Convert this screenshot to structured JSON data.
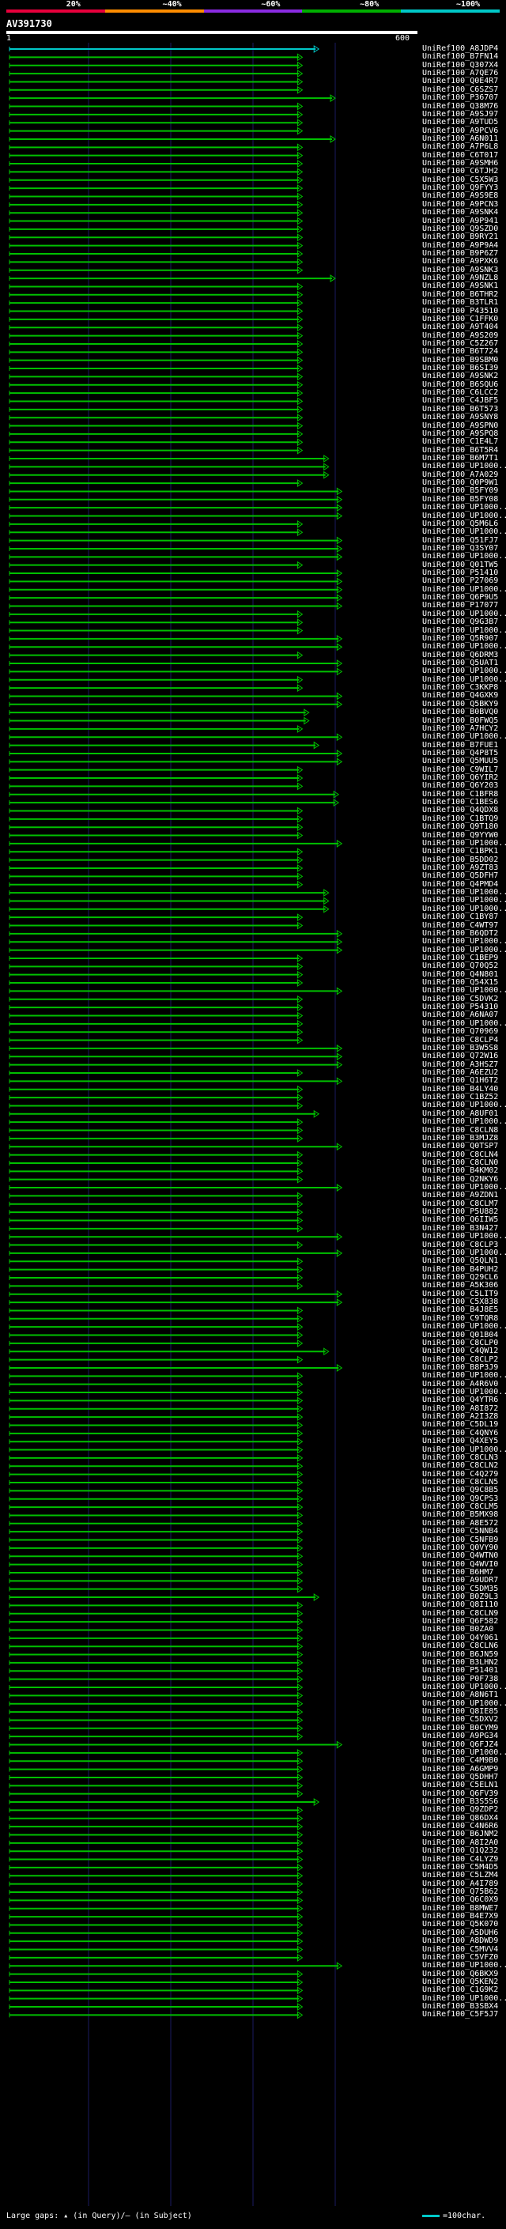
{
  "scale": {
    "labels": [
      "20%",
      "~40%",
      "~60%",
      "~80%",
      "~100%"
    ],
    "colors": [
      "#e8003c",
      "#ff8c00",
      "#8a2be2",
      "#00b000",
      "#00c8c8"
    ]
  },
  "query": {
    "id": "AV391730",
    "start": "1",
    "end": "600"
  },
  "colors": {
    "hit": "#00c000",
    "grid": "#1a1a60",
    "gap": "#ffffff",
    "scale_tick": "#00c8c8"
  },
  "hits": [
    {
      "label": "UniRef100_A8JDP4",
      "end": 0.95,
      "color": "#00c8c8"
    },
    {
      "label": "UniRef100_B7FN14",
      "end": 0.9
    },
    {
      "label": "UniRef100_Q307X4",
      "end": 0.9
    },
    {
      "label": "UniRef100_A7QE76",
      "end": 0.9
    },
    {
      "label": "UniRef100_Q0E4R7",
      "end": 0.9
    },
    {
      "label": "UniRef100_C6SZS7",
      "end": 0.9
    },
    {
      "label": "UniRef100_P36707",
      "end": 1.0
    },
    {
      "label": "UniRef100_Q38M76",
      "end": 0.9
    },
    {
      "label": "UniRef100_A9SJ97",
      "end": 0.9
    },
    {
      "label": "UniRef100_A9TUD5",
      "end": 0.9
    },
    {
      "label": "UniRef100_A9PCV6",
      "end": 0.9
    },
    {
      "label": "UniRef100_A6N011",
      "end": 1.0
    },
    {
      "label": "UniRef100_A7P6L8",
      "end": 0.9
    },
    {
      "label": "UniRef100_C6T017",
      "end": 0.9
    },
    {
      "label": "UniRef100_A9SMH6",
      "end": 0.9
    },
    {
      "label": "UniRef100_C6TJH2",
      "end": 0.9
    },
    {
      "label": "UniRef100_C5X5W3",
      "end": 0.9
    },
    {
      "label": "UniRef100_Q9FYY3",
      "end": 0.9
    },
    {
      "label": "UniRef100_A9S9E8",
      "end": 0.9
    },
    {
      "label": "UniRef100_A9PCN3",
      "end": 0.9
    },
    {
      "label": "UniRef100_A9SNK4",
      "end": 0.9
    },
    {
      "label": "UniRef100_A9P941",
      "end": 0.9
    },
    {
      "label": "UniRef100_Q9SZD0",
      "end": 0.9
    },
    {
      "label": "UniRef100_B9RY21",
      "end": 0.9
    },
    {
      "label": "UniRef100_A9P9A4",
      "end": 0.9
    },
    {
      "label": "UniRef100_B9P6Z7",
      "end": 0.9
    },
    {
      "label": "UniRef100_A9PXK6",
      "end": 0.9
    },
    {
      "label": "UniRef100_A9SNK3",
      "end": 0.9
    },
    {
      "label": "UniRef100_A9NZL8",
      "end": 1.0
    },
    {
      "label": "UniRef100_A9SNK1",
      "end": 0.9
    },
    {
      "label": "UniRef100_B6THR2",
      "end": 0.9
    },
    {
      "label": "UniRef100_B3TLR1",
      "end": 0.9
    },
    {
      "label": "UniRef100_P43510",
      "end": 0.9
    },
    {
      "label": "UniRef100_C1FFK0",
      "end": 0.9
    },
    {
      "label": "UniRef100_A9T404",
      "end": 0.9
    },
    {
      "label": "UniRef100_A9S209",
      "end": 0.9
    },
    {
      "label": "UniRef100_C5Z267",
      "end": 0.9
    },
    {
      "label": "UniRef100_B6T724",
      "end": 0.9
    },
    {
      "label": "UniRef100_B9SBM0",
      "end": 0.9
    },
    {
      "label": "UniRef100_B6SI39",
      "end": 0.9
    },
    {
      "label": "UniRef100_A9SNK2",
      "end": 0.9
    },
    {
      "label": "UniRef100_B6SQU6",
      "end": 0.9
    },
    {
      "label": "UniRef100_C6LCC2",
      "end": 0.9
    },
    {
      "label": "UniRef100_C4JBF5",
      "end": 0.9
    },
    {
      "label": "UniRef100_B6T573",
      "end": 0.9
    },
    {
      "label": "UniRef100_A9SNY8",
      "end": 0.9
    },
    {
      "label": "UniRef100_A9SPN0",
      "end": 0.9
    },
    {
      "label": "UniRef100_A9SPQ8",
      "end": 0.9
    },
    {
      "label": "UniRef100_C1E4L7",
      "end": 0.9
    },
    {
      "label": "UniRef100_B6T5R4",
      "end": 0.9
    },
    {
      "label": "UniRef100_B6M7T1",
      "end": 0.98
    },
    {
      "label": "UniRef100_UP1000...",
      "end": 0.98
    },
    {
      "label": "UniRef100_A7A029",
      "end": 0.98
    },
    {
      "label": "UniRef100_Q0P9W1",
      "end": 0.9
    },
    {
      "label": "UniRef100_B5FY09",
      "end": 1.02
    },
    {
      "label": "UniRef100_B5FY08",
      "end": 1.02
    },
    {
      "label": "UniRef100_UP1000...",
      "end": 1.02
    },
    {
      "label": "UniRef100_UP1000...",
      "end": 1.02
    },
    {
      "label": "UniRef100_Q5M6L6",
      "end": 0.9
    },
    {
      "label": "UniRef100_UP1000...",
      "end": 0.9
    },
    {
      "label": "UniRef100_Q51FJ7",
      "end": 1.02
    },
    {
      "label": "UniRef100_Q3SY07",
      "end": 1.02
    },
    {
      "label": "UniRef100_UP1000...",
      "end": 1.02
    },
    {
      "label": "UniRef100_Q01TW5",
      "end": 0.9
    },
    {
      "label": "UniRef100_P51410",
      "end": 1.02
    },
    {
      "label": "UniRef100_P27069",
      "end": 1.02
    },
    {
      "label": "UniRef100_UP1000...",
      "end": 1.02
    },
    {
      "label": "UniRef100_Q6P9U5",
      "end": 1.02
    },
    {
      "label": "UniRef100_P17077",
      "end": 1.02
    },
    {
      "label": "UniRef100_UP1000...",
      "end": 0.9
    },
    {
      "label": "UniRef100_Q9G3B7",
      "end": 0.9
    },
    {
      "label": "UniRef100_UP1000...",
      "end": 0.9
    },
    {
      "label": "UniRef100_Q5R907",
      "end": 1.02
    },
    {
      "label": "UniRef100_UP1000...",
      "end": 1.02
    },
    {
      "label": "UniRef100_Q6DRM3",
      "end": 0.9
    },
    {
      "label": "UniRef100_Q5UAT1",
      "end": 1.02
    },
    {
      "label": "UniRef100_UP1000...",
      "end": 1.02
    },
    {
      "label": "UniRef100_UP1000...",
      "end": 0.9
    },
    {
      "label": "UniRef100_C3KKP8",
      "end": 0.9
    },
    {
      "label": "UniRef100_Q4GXK9",
      "end": 1.02
    },
    {
      "label": "UniRef100_Q5BKY9",
      "end": 1.02
    },
    {
      "label": "UniRef100_B0BVQ0",
      "end": 0.92
    },
    {
      "label": "UniRef100_B0FWQ5",
      "end": 0.92
    },
    {
      "label": "UniRef100_A7HCY2",
      "end": 0.9
    },
    {
      "label": "UniRef100_UP1000...",
      "end": 1.02
    },
    {
      "label": "UniRef100_B7FUE1",
      "end": 0.95
    },
    {
      "label": "UniRef100_Q4P8T5",
      "end": 1.02
    },
    {
      "label": "UniRef100_Q5MUU5",
      "end": 1.02
    },
    {
      "label": "UniRef100_C9WIL7",
      "end": 0.9
    },
    {
      "label": "UniRef100_Q6YIR2",
      "end": 0.9
    },
    {
      "label": "UniRef100_Q6Y203",
      "end": 0.9
    },
    {
      "label": "UniRef100_C1BFR8",
      "end": 1.01
    },
    {
      "label": "UniRef100_C1BES6",
      "end": 1.01
    },
    {
      "label": "UniRef100_Q4QDX8",
      "end": 0.9
    },
    {
      "label": "UniRef100_C1BTQ9",
      "end": 0.9
    },
    {
      "label": "UniRef100_Q9T180",
      "end": 0.9
    },
    {
      "label": "UniRef100_Q9YYW0",
      "end": 0.9
    },
    {
      "label": "UniRef100_UP1000...",
      "end": 1.02
    },
    {
      "label": "UniRef100_C1BPK1",
      "end": 0.9
    },
    {
      "label": "UniRef100_B5DD02",
      "end": 0.9
    },
    {
      "label": "UniRef100_A9ZT83",
      "end": 0.9
    },
    {
      "label": "UniRef100_Q5DFH7",
      "end": 0.9
    },
    {
      "label": "UniRef100_Q4PMD4",
      "end": 0.9
    },
    {
      "label": "UniRef100_UP1000...",
      "end": 0.98
    },
    {
      "label": "UniRef100_UP1000...",
      "end": 0.98
    },
    {
      "label": "UniRef100_UP1000...",
      "end": 0.98
    },
    {
      "label": "UniRef100_C1BY87",
      "end": 0.9
    },
    {
      "label": "UniRef100_C4WT97",
      "end": 0.9
    },
    {
      "label": "UniRef100_B6QDT2",
      "end": 1.02
    },
    {
      "label": "UniRef100_UP1000...",
      "end": 1.02
    },
    {
      "label": "UniRef100_UP1000...",
      "end": 1.02
    },
    {
      "label": "UniRef100_C1BEP9",
      "end": 0.9
    },
    {
      "label": "UniRef100_Q70Q52",
      "end": 0.9
    },
    {
      "label": "UniRef100_Q4N801",
      "end": 0.9
    },
    {
      "label": "UniRef100_Q54X15",
      "end": 0.9
    },
    {
      "label": "UniRef100_UP1000...",
      "end": 1.02
    },
    {
      "label": "UniRef100_C5DVK2",
      "end": 0.9
    },
    {
      "label": "UniRef100_P54310",
      "end": 0.9
    },
    {
      "label": "UniRef100_A6NA07",
      "end": 0.9
    },
    {
      "label": "UniRef100_UP1000...",
      "end": 0.9
    },
    {
      "label": "UniRef100_Q70969",
      "end": 0.9
    },
    {
      "label": "UniRef100_C8CLP4",
      "end": 0.9
    },
    {
      "label": "UniRef100_B3W5S8",
      "end": 1.02
    },
    {
      "label": "UniRef100_Q72W16",
      "end": 1.02
    },
    {
      "label": "UniRef100_A3HSZ7",
      "end": 1.02
    },
    {
      "label": "UniRef100_A6EZU2",
      "end": 0.9
    },
    {
      "label": "UniRef100_Q1H6T2",
      "end": 1.02
    },
    {
      "label": "UniRef100_B4LY40",
      "end": 0.9
    },
    {
      "label": "UniRef100_C1BZ52",
      "end": 0.9
    },
    {
      "label": "UniRef100_UP1000...",
      "end": 0.9
    },
    {
      "label": "UniRef100_A8UF01",
      "end": 0.95
    },
    {
      "label": "UniRef100_UP1000...",
      "end": 0.9
    },
    {
      "label": "UniRef100_C8CLN8",
      "end": 0.9
    },
    {
      "label": "UniRef100_B3MJZ8",
      "end": 0.9
    },
    {
      "label": "UniRef100_Q0TSP7",
      "end": 1.02
    },
    {
      "label": "UniRef100_C8CLN4",
      "end": 0.9
    },
    {
      "label": "UniRef100_C8CLN0",
      "end": 0.9
    },
    {
      "label": "UniRef100_B4KM02",
      "end": 0.9
    },
    {
      "label": "UniRef100_Q2NKY6",
      "end": 0.9
    },
    {
      "label": "UniRef100_UP1000...",
      "end": 1.02
    },
    {
      "label": "UniRef100_A9ZDN1",
      "end": 0.9
    },
    {
      "label": "UniRef100_C8CLM7",
      "end": 0.9
    },
    {
      "label": "UniRef100_P5U882",
      "end": 0.9
    },
    {
      "label": "UniRef100_Q6IIW5",
      "end": 0.9
    },
    {
      "label": "UniRef100_B3N427",
      "end": 0.9
    },
    {
      "label": "UniRef100_UP1000...",
      "end": 1.02
    },
    {
      "label": "UniRef100_C8CLP3",
      "end": 0.9
    },
    {
      "label": "UniRef100_UP1000...",
      "end": 1.02
    },
    {
      "label": "UniRef100_Q5QLN1",
      "end": 0.9
    },
    {
      "label": "UniRef100_B4PUH2",
      "end": 0.9
    },
    {
      "label": "UniRef100_Q29CL6",
      "end": 0.9
    },
    {
      "label": "UniRef100_A5K306",
      "end": 0.9
    },
    {
      "label": "UniRef100_C5LIT9",
      "end": 1.02
    },
    {
      "label": "UniRef100_C5X838",
      "end": 1.02
    },
    {
      "label": "UniRef100_B4J8E5",
      "end": 0.9
    },
    {
      "label": "UniRef100_C9TQR8",
      "end": 0.9
    },
    {
      "label": "UniRef100_UP1000...",
      "end": 0.9
    },
    {
      "label": "UniRef100_Q01B04",
      "end": 0.9
    },
    {
      "label": "UniRef100_C8CLP0",
      "end": 0.9
    },
    {
      "label": "UniRef100_C4QW12",
      "end": 0.98
    },
    {
      "label": "UniRef100_C8CLP2",
      "end": 0.9
    },
    {
      "label": "UniRef100_B8P3J9",
      "end": 1.02
    },
    {
      "label": "UniRef100_UP1000...",
      "end": 0.9
    },
    {
      "label": "UniRef100_A4R6V0",
      "end": 0.9
    },
    {
      "label": "UniRef100_UP1000...",
      "end": 0.9
    },
    {
      "label": "UniRef100_Q4YTR6",
      "end": 0.9
    },
    {
      "label": "UniRef100_A8I872",
      "end": 0.9
    },
    {
      "label": "UniRef100_A2I3Z8",
      "end": 0.9
    },
    {
      "label": "UniRef100_C5DL19",
      "end": 0.9
    },
    {
      "label": "UniRef100_C4QNY6",
      "end": 0.9
    },
    {
      "label": "UniRef100_Q4XEY5",
      "end": 0.9
    },
    {
      "label": "UniRef100_UP1000...",
      "end": 0.9
    },
    {
      "label": "UniRef100_C8CLN3",
      "end": 0.9
    },
    {
      "label": "UniRef100_C8CLN2",
      "end": 0.9
    },
    {
      "label": "UniRef100_C4Q279",
      "end": 0.9
    },
    {
      "label": "UniRef100_C8CLN5",
      "end": 0.9
    },
    {
      "label": "UniRef100_Q9C8B5",
      "end": 0.9
    },
    {
      "label": "UniRef100_Q9CPS3",
      "end": 0.9
    },
    {
      "label": "UniRef100_C8CLM5",
      "end": 0.9
    },
    {
      "label": "UniRef100_B5MX98",
      "end": 0.9
    },
    {
      "label": "UniRef100_A8E572",
      "end": 0.9
    },
    {
      "label": "UniRef100_C5NNB4",
      "end": 0.9
    },
    {
      "label": "UniRef100_C5NFB9",
      "end": 0.9
    },
    {
      "label": "UniRef100_Q0VY90",
      "end": 0.9
    },
    {
      "label": "UniRef100_Q4WTN0",
      "end": 0.9
    },
    {
      "label": "UniRef100_Q4WVI0",
      "end": 0.9
    },
    {
      "label": "UniRef100_B6HM7",
      "end": 0.9
    },
    {
      "label": "UniRef100_A9UDR7",
      "end": 0.9
    },
    {
      "label": "UniRef100_C5DM35",
      "end": 0.9
    },
    {
      "label": "UniRef100_B0Z9L3",
      "end": 0.95
    },
    {
      "label": "UniRef100_Q8I110",
      "end": 0.9
    },
    {
      "label": "UniRef100_C8CLN9",
      "end": 0.9
    },
    {
      "label": "UniRef100_Q6F582",
      "end": 0.9
    },
    {
      "label": "UniRef100_B0ZA0",
      "end": 0.9
    },
    {
      "label": "UniRef100_Q4Y061",
      "end": 0.9
    },
    {
      "label": "UniRef100_C8CLN6",
      "end": 0.9
    },
    {
      "label": "UniRef100_B6JN59",
      "end": 0.9
    },
    {
      "label": "UniRef100_B3LHN2",
      "end": 0.9
    },
    {
      "label": "UniRef100_P51401",
      "end": 0.9
    },
    {
      "label": "UniRef100_P0F738",
      "end": 0.9
    },
    {
      "label": "UniRef100_UP1000...",
      "end": 0.9
    },
    {
      "label": "UniRef100_A8N6T1",
      "end": 0.9
    },
    {
      "label": "UniRef100_UP1000...",
      "end": 0.9
    },
    {
      "label": "UniRef100_Q8IE85",
      "end": 0.9
    },
    {
      "label": "UniRef100_C5DXV2",
      "end": 0.9
    },
    {
      "label": "UniRef100_B0CYM9",
      "end": 0.9
    },
    {
      "label": "UniRef100_A9PG34",
      "end": 0.9
    },
    {
      "label": "UniRef100_Q6FJZ4",
      "end": 1.02
    },
    {
      "label": "UniRef100_UP1000...",
      "end": 0.9
    },
    {
      "label": "UniRef100_C4M9B0",
      "end": 0.9
    },
    {
      "label": "UniRef100_A6GMP9",
      "end": 0.9
    },
    {
      "label": "UniRef100_Q5DHH7",
      "end": 0.9
    },
    {
      "label": "UniRef100_C5ELN1",
      "end": 0.9
    },
    {
      "label": "UniRef100_Q6FV39",
      "end": 0.9
    },
    {
      "label": "UniRef100_B3S5S6",
      "end": 0.95
    },
    {
      "label": "UniRef100_Q9ZDP2",
      "end": 0.9
    },
    {
      "label": "UniRef100_Q86DX4",
      "end": 0.9
    },
    {
      "label": "UniRef100_C4N6R6",
      "end": 0.9
    },
    {
      "label": "UniRef100_B6JNM2",
      "end": 0.9
    },
    {
      "label": "UniRef100_A8I2A0",
      "end": 0.9
    },
    {
      "label": "UniRef100_Q1Q232",
      "end": 0.9
    },
    {
      "label": "UniRef100_C4LYZ9",
      "end": 0.9
    },
    {
      "label": "UniRef100_C5M4D5",
      "end": 0.9
    },
    {
      "label": "UniRef100_C5LZM4",
      "end": 0.9
    },
    {
      "label": "UniRef100_A4I789",
      "end": 0.9
    },
    {
      "label": "UniRef100_Q75B62",
      "end": 0.9
    },
    {
      "label": "UniRef100_Q6C0X9",
      "end": 0.9
    },
    {
      "label": "UniRef100_B8MWE7",
      "end": 0.9
    },
    {
      "label": "UniRef100_B4E7X9",
      "end": 0.9
    },
    {
      "label": "UniRef100_Q5K070",
      "end": 0.9
    },
    {
      "label": "UniRef100_A5DUH6",
      "end": 0.9
    },
    {
      "label": "UniRef100_A8DWD9",
      "end": 0.9
    },
    {
      "label": "UniRef100_C5MVV4",
      "end": 0.9
    },
    {
      "label": "UniRef100_C5VFZ0",
      "end": 0.9
    },
    {
      "label": "UniRef100_UP1000...",
      "end": 1.02
    },
    {
      "label": "UniRef100_Q6BKX9",
      "end": 0.9
    },
    {
      "label": "UniRef100_Q5KEN2",
      "end": 0.9
    },
    {
      "label": "UniRef100_C1G9K2",
      "end": 0.9
    },
    {
      "label": "UniRef100_UP1000...",
      "end": 0.9
    },
    {
      "label": "UniRef100_B3SBX4",
      "end": 0.9
    },
    {
      "label": "UniRef100_C5F5J7",
      "end": 0.9
    }
  ],
  "legend": {
    "text": "Large gaps: ▴ (in Query)/— (in Subject)",
    "scale_text": "=100char."
  }
}
